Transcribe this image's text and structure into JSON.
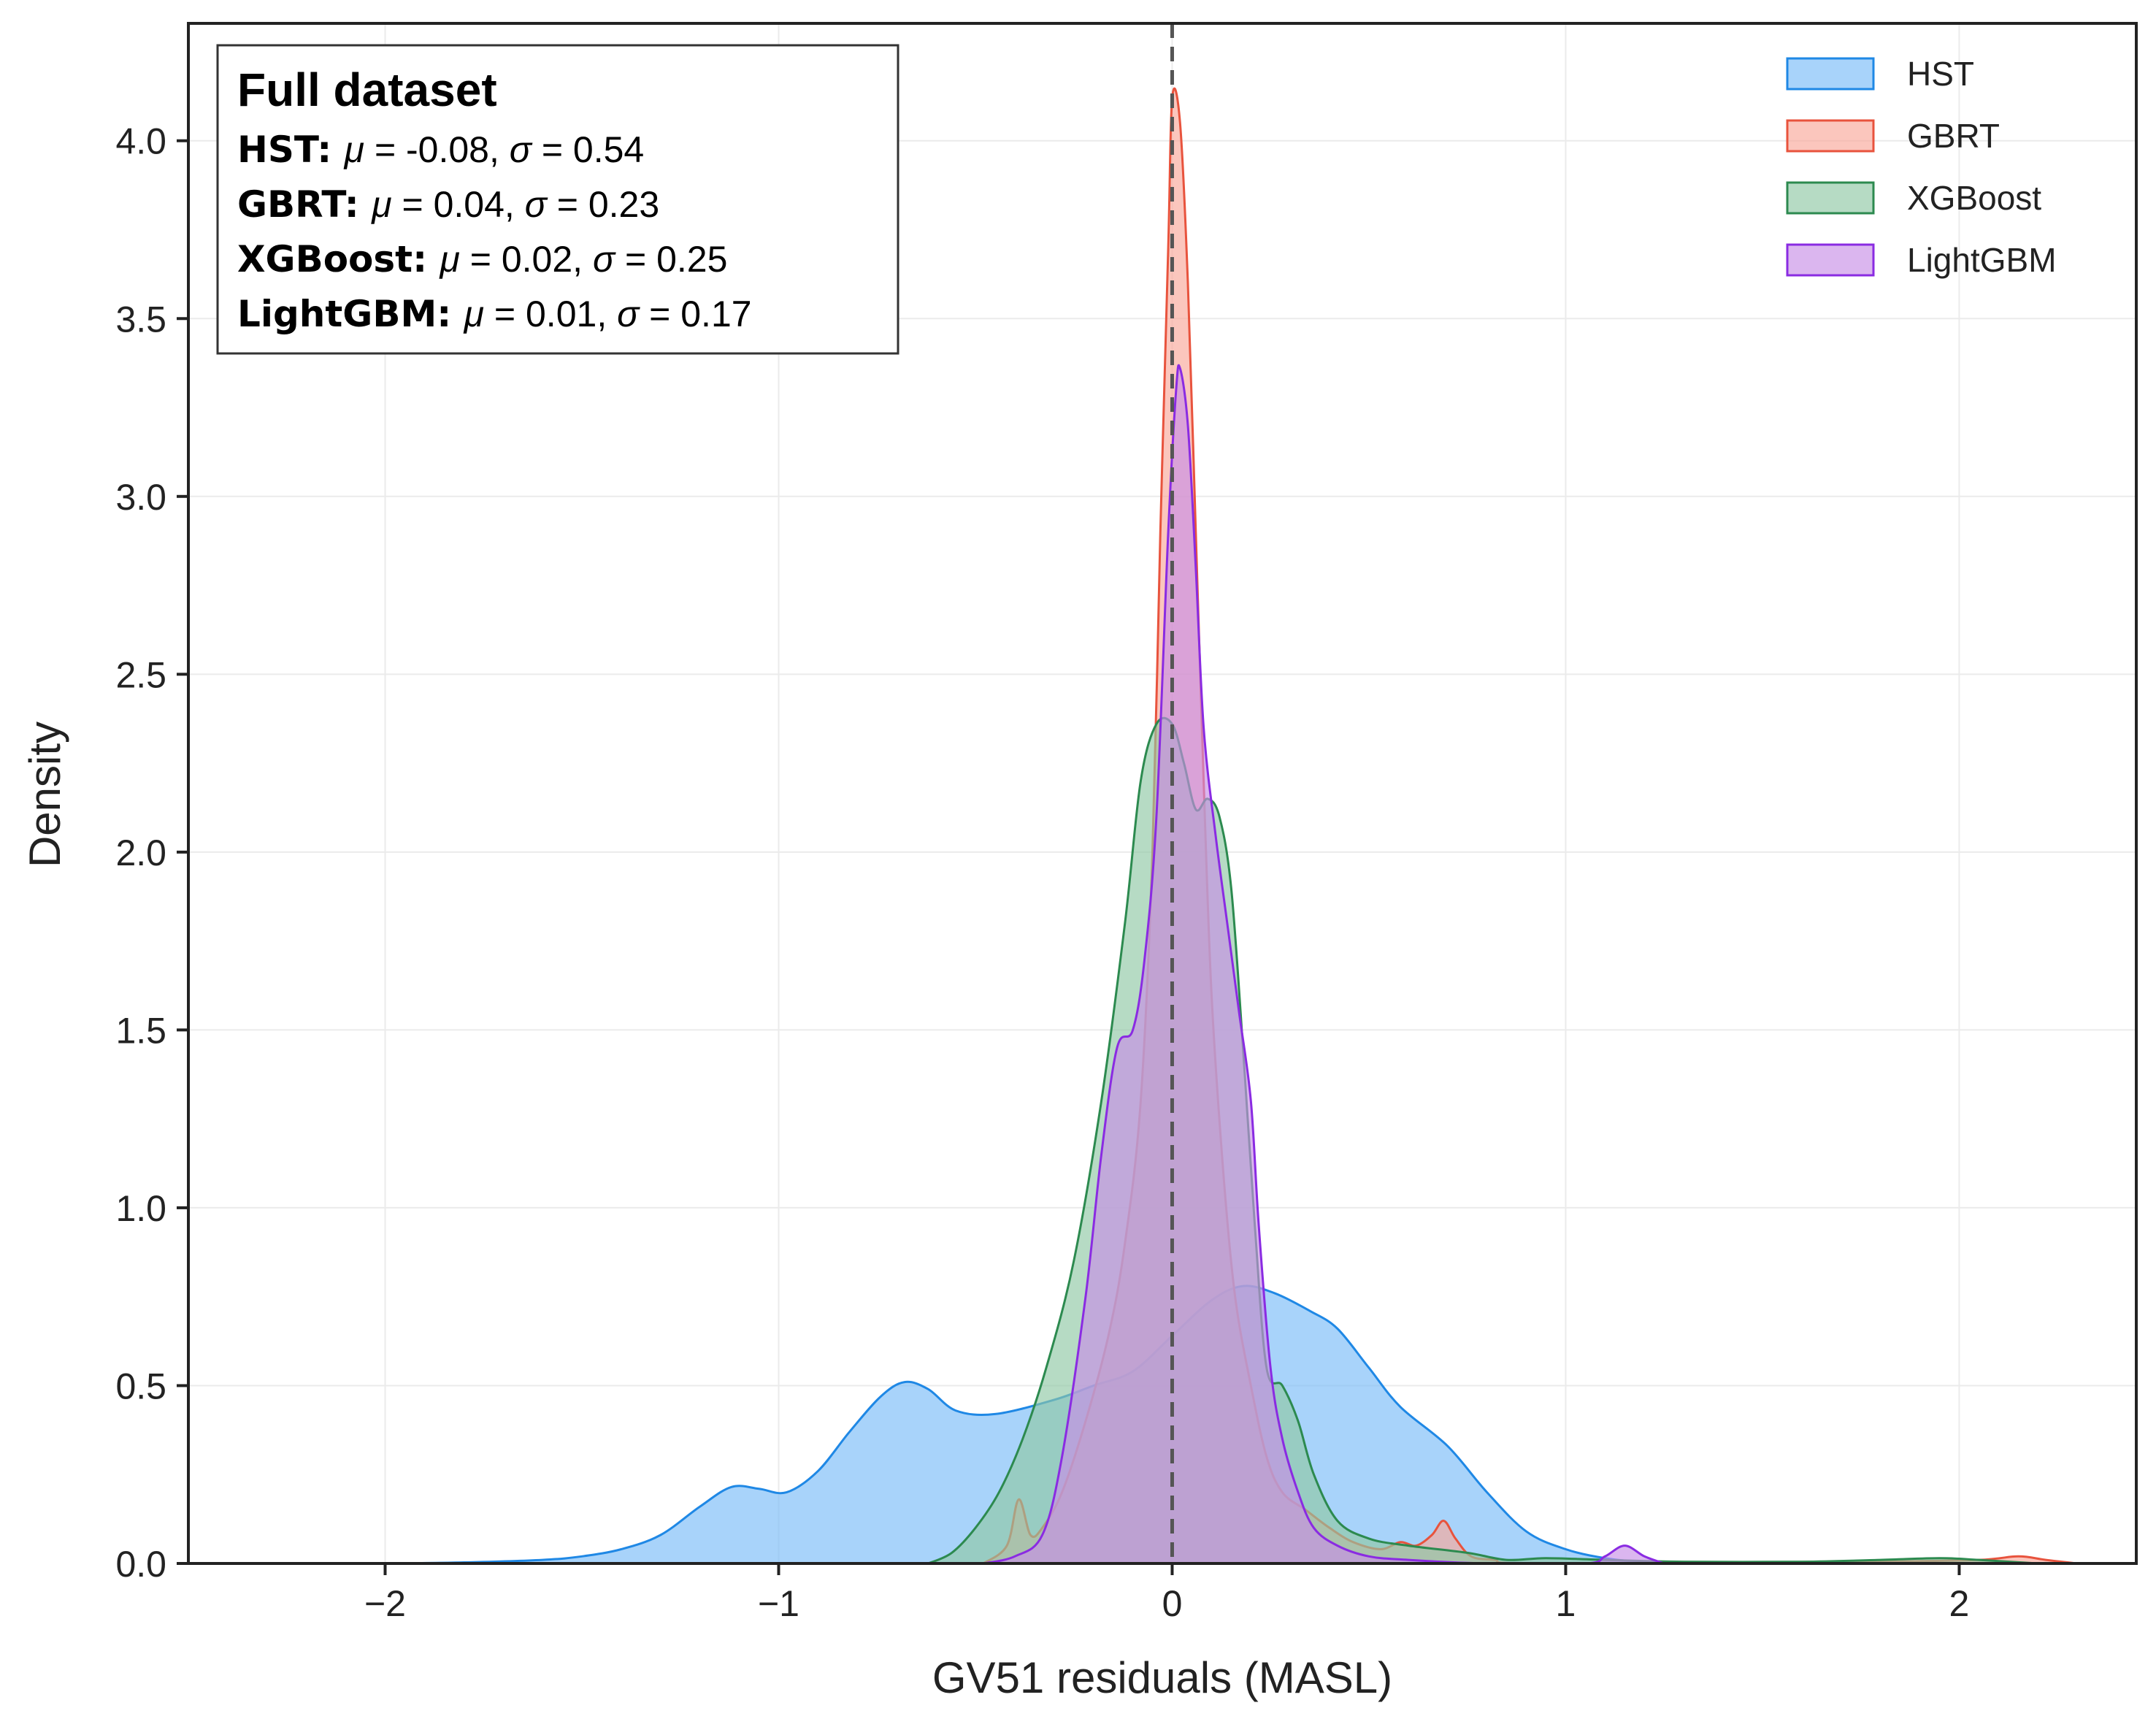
{
  "chart_data": {
    "type": "area",
    "xlabel": "GV51 residuals (MASL)",
    "ylabel": "Density",
    "xlim": [
      -2.5,
      2.45
    ],
    "ylim": [
      0,
      4.33
    ],
    "xticks": [
      -2,
      -1,
      0,
      1,
      2
    ],
    "xtick_labels": [
      "−2",
      "−1",
      "0",
      "1",
      "2"
    ],
    "yticks": [
      0.0,
      0.5,
      1.0,
      1.5,
      2.0,
      2.5,
      3.0,
      3.5,
      4.0
    ],
    "ytick_labels": [
      "0.0",
      "0.5",
      "1.0",
      "1.5",
      "2.0",
      "2.5",
      "3.0",
      "3.5",
      "4.0"
    ],
    "grid": true,
    "reference_line": {
      "x": 0,
      "style": "dashed"
    },
    "legend": {
      "position": "top-right"
    },
    "stats_box": {
      "title": "Full dataset",
      "position": "top-left",
      "entries": [
        {
          "name": "HST",
          "mu_sym": "μ",
          "mu_val": " = -0.08, ",
          "sigma_sym": "σ",
          "sigma_val": " = 0.54"
        },
        {
          "name": "GBRT",
          "mu_sym": "μ",
          "mu_val": " = 0.04, ",
          "sigma_sym": "σ",
          "sigma_val": " = 0.23"
        },
        {
          "name": "XGBoost",
          "mu_sym": "μ",
          "mu_val": " = 0.02, ",
          "sigma_sym": "σ",
          "sigma_val": " = 0.25"
        },
        {
          "name": "LightGBM",
          "mu_sym": "μ",
          "mu_val": " = 0.01, ",
          "sigma_sym": "σ",
          "sigma_val": " = 0.17"
        }
      ]
    },
    "series": [
      {
        "name": "HST",
        "fill": "#79bbf8",
        "stroke": "#1f88e5",
        "points": [
          [
            -2.0,
            0.0
          ],
          [
            -1.8,
            0.003
          ],
          [
            -1.6,
            0.01
          ],
          [
            -1.5,
            0.02
          ],
          [
            -1.4,
            0.04
          ],
          [
            -1.3,
            0.08
          ],
          [
            -1.2,
            0.16
          ],
          [
            -1.12,
            0.215
          ],
          [
            -1.05,
            0.21
          ],
          [
            -0.98,
            0.2
          ],
          [
            -0.9,
            0.26
          ],
          [
            -0.82,
            0.37
          ],
          [
            -0.74,
            0.47
          ],
          [
            -0.68,
            0.51
          ],
          [
            -0.62,
            0.49
          ],
          [
            -0.55,
            0.43
          ],
          [
            -0.45,
            0.42
          ],
          [
            -0.3,
            0.46
          ],
          [
            -0.2,
            0.5
          ],
          [
            -0.1,
            0.54
          ],
          [
            0.0,
            0.64
          ],
          [
            0.1,
            0.74
          ],
          [
            0.18,
            0.78
          ],
          [
            0.26,
            0.76
          ],
          [
            0.35,
            0.71
          ],
          [
            0.42,
            0.66
          ],
          [
            0.5,
            0.55
          ],
          [
            0.58,
            0.44
          ],
          [
            0.7,
            0.33
          ],
          [
            0.8,
            0.2
          ],
          [
            0.9,
            0.09
          ],
          [
            1.0,
            0.04
          ],
          [
            1.1,
            0.015
          ],
          [
            1.2,
            0.005
          ],
          [
            1.4,
            0.001
          ],
          [
            1.6,
            0.0
          ]
        ]
      },
      {
        "name": "GBRT",
        "fill": "#f9a89a",
        "stroke": "#e8533d",
        "points": [
          [
            -0.48,
            0.0
          ],
          [
            -0.42,
            0.05
          ],
          [
            -0.39,
            0.18
          ],
          [
            -0.36,
            0.08
          ],
          [
            -0.33,
            0.1
          ],
          [
            -0.28,
            0.2
          ],
          [
            -0.22,
            0.4
          ],
          [
            -0.16,
            0.65
          ],
          [
            -0.12,
            0.9
          ],
          [
            -0.08,
            1.3
          ],
          [
            -0.05,
            2.0
          ],
          [
            -0.03,
            2.9
          ],
          [
            -0.01,
            3.7
          ],
          [
            0.0,
            4.12
          ],
          [
            0.02,
            4.05
          ],
          [
            0.04,
            3.6
          ],
          [
            0.06,
            2.9
          ],
          [
            0.08,
            2.2
          ],
          [
            0.1,
            1.6
          ],
          [
            0.13,
            1.1
          ],
          [
            0.16,
            0.75
          ],
          [
            0.2,
            0.5
          ],
          [
            0.24,
            0.3
          ],
          [
            0.28,
            0.2
          ],
          [
            0.34,
            0.15
          ],
          [
            0.4,
            0.1
          ],
          [
            0.46,
            0.06
          ],
          [
            0.53,
            0.04
          ],
          [
            0.58,
            0.06
          ],
          [
            0.62,
            0.05
          ],
          [
            0.66,
            0.08
          ],
          [
            0.69,
            0.12
          ],
          [
            0.72,
            0.07
          ],
          [
            0.76,
            0.02
          ],
          [
            0.82,
            0.01
          ],
          [
            0.9,
            0.0
          ],
          [
            1.5,
            0.0
          ],
          [
            1.8,
            0.005
          ],
          [
            2.05,
            0.01
          ],
          [
            2.15,
            0.02
          ],
          [
            2.22,
            0.01
          ],
          [
            2.3,
            0.0
          ]
        ]
      },
      {
        "name": "XGBoost",
        "fill": "#8fc7a4",
        "stroke": "#2c8a4f",
        "points": [
          [
            -0.62,
            0.0
          ],
          [
            -0.56,
            0.03
          ],
          [
            -0.5,
            0.1
          ],
          [
            -0.44,
            0.2
          ],
          [
            -0.38,
            0.35
          ],
          [
            -0.32,
            0.55
          ],
          [
            -0.25,
            0.85
          ],
          [
            -0.18,
            1.3
          ],
          [
            -0.12,
            1.8
          ],
          [
            -0.08,
            2.2
          ],
          [
            -0.04,
            2.36
          ],
          [
            0.0,
            2.36
          ],
          [
            0.03,
            2.25
          ],
          [
            0.06,
            2.12
          ],
          [
            0.09,
            2.15
          ],
          [
            0.12,
            2.1
          ],
          [
            0.15,
            1.9
          ],
          [
            0.18,
            1.45
          ],
          [
            0.21,
            0.95
          ],
          [
            0.24,
            0.55
          ],
          [
            0.28,
            0.5
          ],
          [
            0.32,
            0.4
          ],
          [
            0.36,
            0.25
          ],
          [
            0.42,
            0.12
          ],
          [
            0.5,
            0.07
          ],
          [
            0.6,
            0.05
          ],
          [
            0.75,
            0.03
          ],
          [
            0.85,
            0.01
          ],
          [
            0.95,
            0.015
          ],
          [
            1.1,
            0.01
          ],
          [
            1.3,
            0.005
          ],
          [
            1.6,
            0.005
          ],
          [
            1.8,
            0.01
          ],
          [
            1.95,
            0.015
          ],
          [
            2.05,
            0.01
          ],
          [
            2.2,
            0.0
          ]
        ]
      },
      {
        "name": "LightGBM",
        "fill": "#c78fe6",
        "stroke": "#8a2be2",
        "points": [
          [
            -0.48,
            0.0
          ],
          [
            -0.4,
            0.02
          ],
          [
            -0.33,
            0.08
          ],
          [
            -0.28,
            0.3
          ],
          [
            -0.22,
            0.75
          ],
          [
            -0.18,
            1.15
          ],
          [
            -0.14,
            1.45
          ],
          [
            -0.1,
            1.5
          ],
          [
            -0.07,
            1.7
          ],
          [
            -0.04,
            2.1
          ],
          [
            -0.01,
            2.9
          ],
          [
            0.01,
            3.3
          ],
          [
            0.02,
            3.36
          ],
          [
            0.04,
            3.2
          ],
          [
            0.06,
            2.8
          ],
          [
            0.08,
            2.35
          ],
          [
            0.11,
            2.05
          ],
          [
            0.14,
            1.8
          ],
          [
            0.17,
            1.55
          ],
          [
            0.2,
            1.3
          ],
          [
            0.22,
            0.95
          ],
          [
            0.25,
            0.55
          ],
          [
            0.28,
            0.35
          ],
          [
            0.32,
            0.2
          ],
          [
            0.36,
            0.1
          ],
          [
            0.42,
            0.05
          ],
          [
            0.5,
            0.02
          ],
          [
            0.6,
            0.01
          ],
          [
            0.8,
            0.0
          ],
          [
            1.05,
            0.0
          ],
          [
            1.1,
            0.02
          ],
          [
            1.15,
            0.05
          ],
          [
            1.2,
            0.02
          ],
          [
            1.25,
            0.0
          ]
        ]
      }
    ]
  }
}
